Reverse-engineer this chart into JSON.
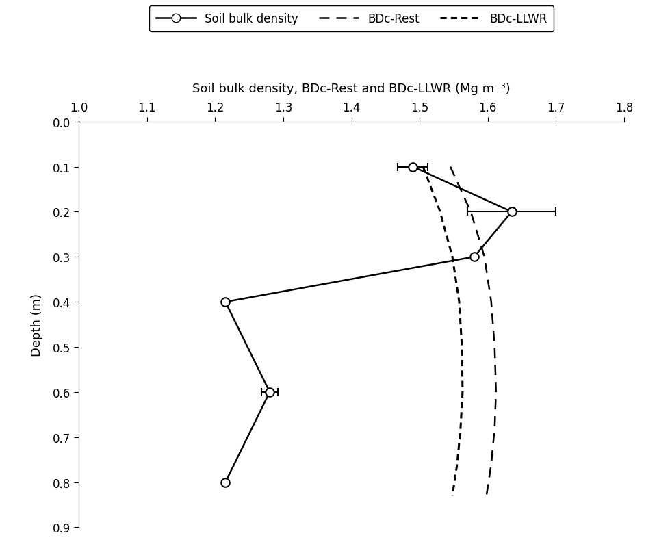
{
  "title": "Soil bulk density, BDc-Rest and BDc-LLWR (Mg m⁻³)",
  "ylabel": "Depth (m)",
  "xlim": [
    1.0,
    1.8
  ],
  "ylim": [
    0.0,
    0.9
  ],
  "xticks": [
    1.0,
    1.1,
    1.2,
    1.3,
    1.4,
    1.5,
    1.6,
    1.7,
    1.8
  ],
  "yticks": [
    0.0,
    0.1,
    0.2,
    0.3,
    0.4,
    0.5,
    0.6,
    0.7,
    0.8,
    0.9
  ],
  "bulk_density_x": [
    1.49,
    1.635,
    1.58,
    1.215,
    1.28,
    1.215
  ],
  "bulk_density_y": [
    0.1,
    0.2,
    0.3,
    0.4,
    0.6,
    0.8
  ],
  "bulk_density_xerr": [
    0.022,
    0.065,
    0.0,
    0.0,
    0.012,
    0.0
  ],
  "bdc_rest_x": [
    1.545,
    1.575,
    1.595,
    1.605,
    1.61,
    1.612,
    1.61,
    1.605,
    1.598
  ],
  "bdc_rest_y": [
    0.1,
    0.2,
    0.3,
    0.4,
    0.5,
    0.6,
    0.68,
    0.76,
    0.83
  ],
  "bdc_llwr_x": [
    1.505,
    1.53,
    1.548,
    1.558,
    1.562,
    1.563,
    1.56,
    1.555,
    1.548
  ],
  "bdc_llwr_y": [
    0.1,
    0.2,
    0.3,
    0.4,
    0.5,
    0.6,
    0.68,
    0.76,
    0.83
  ],
  "line_color": "#000000",
  "background_color": "#ffffff",
  "title_fontsize": 13,
  "label_fontsize": 13,
  "tick_fontsize": 12
}
